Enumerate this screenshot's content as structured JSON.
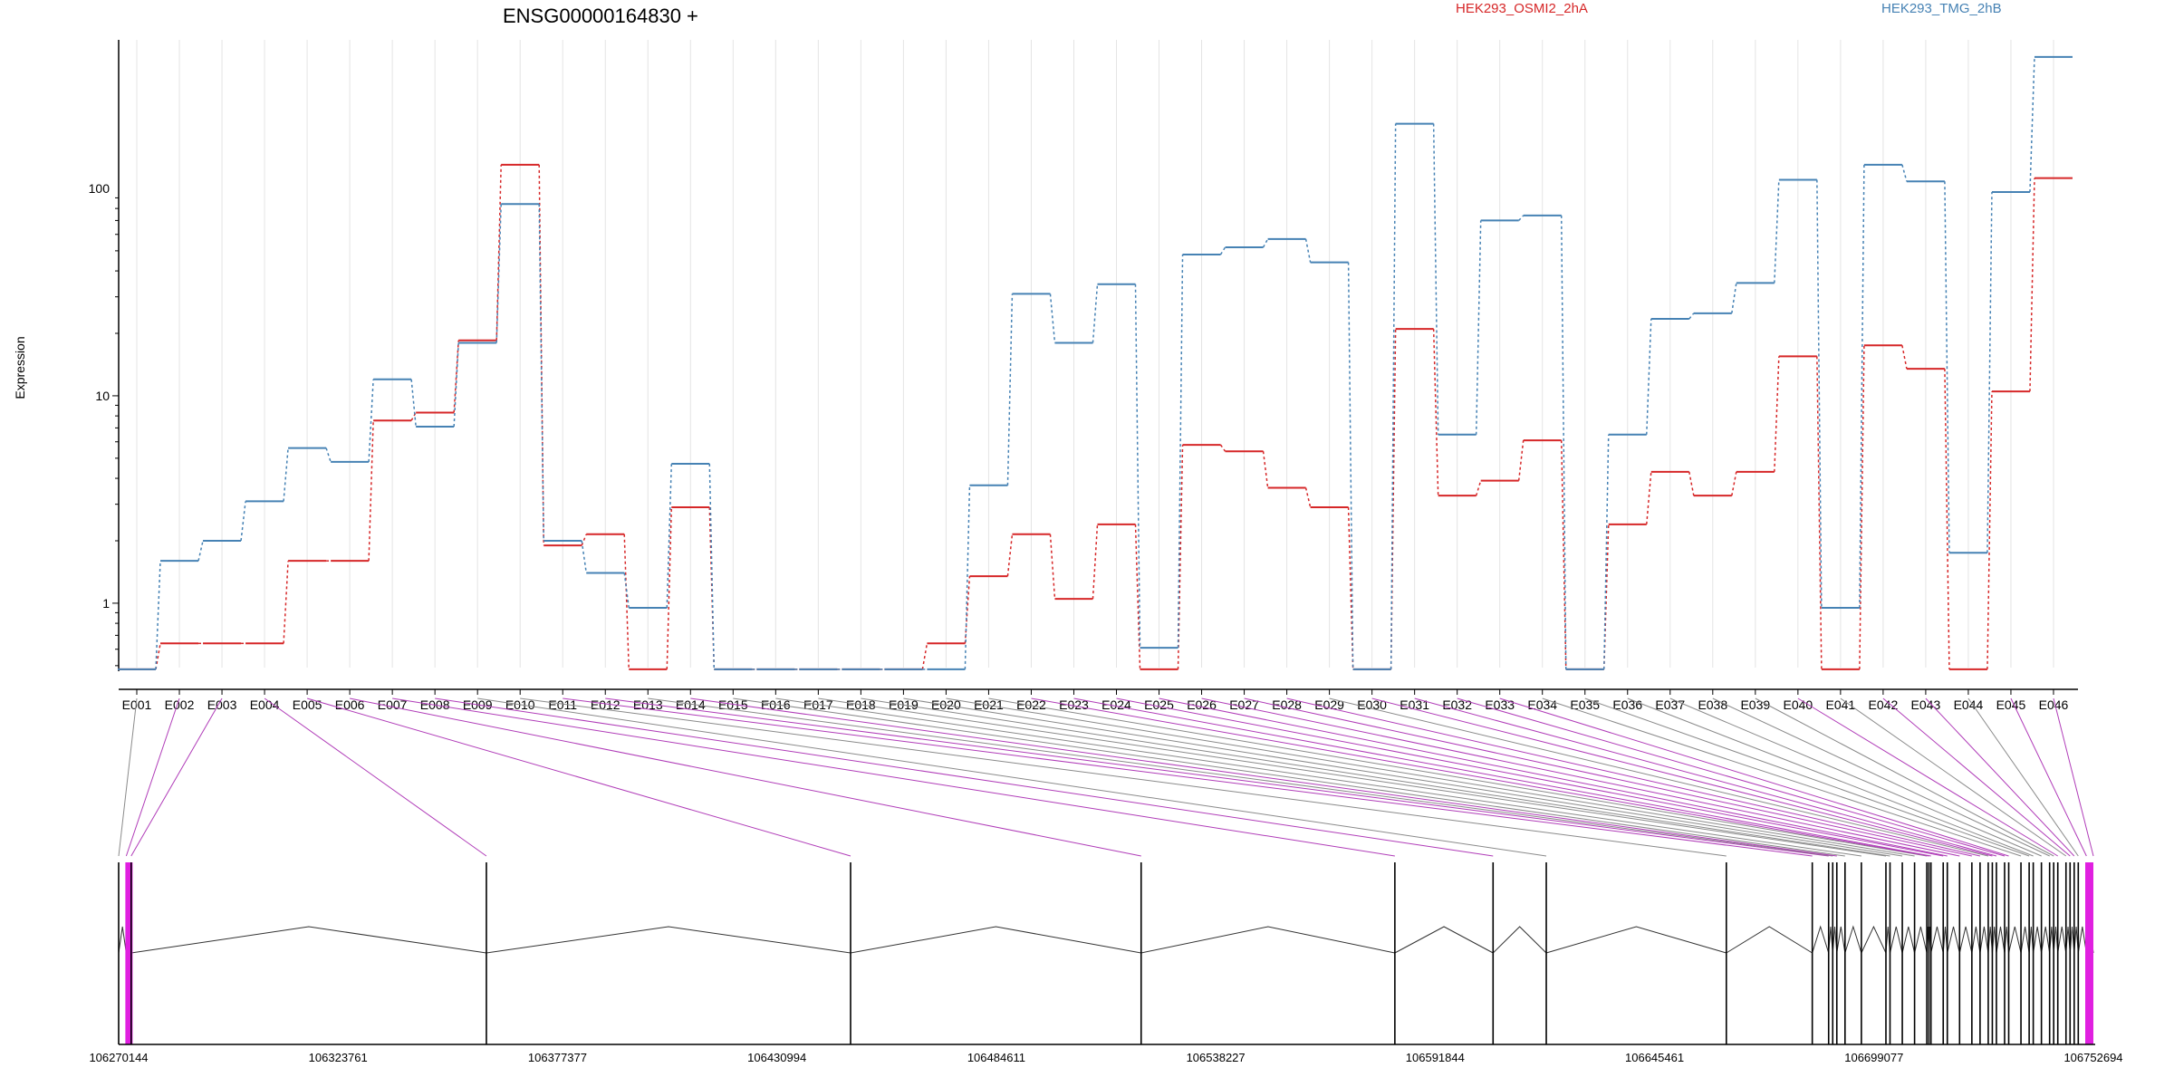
{
  "chart_data": {
    "type": "line",
    "title": "ENSG00000164830 +",
    "ylabel": "Expression",
    "xlabel": "",
    "y_scale": "log",
    "ylim": [
      0.47,
      520
    ],
    "y_ticks": [
      1,
      10,
      100
    ],
    "grid": "vertical, light",
    "legend": "top-right",
    "categories": [
      "E001",
      "E002",
      "E003",
      "E004",
      "E005",
      "E006",
      "E007",
      "E008",
      "E009",
      "E010",
      "E011",
      "E012",
      "E013",
      "E014",
      "E015",
      "E016",
      "E017",
      "E018",
      "E019",
      "E020",
      "E021",
      "E022",
      "E023",
      "E024",
      "E025",
      "E026",
      "E027",
      "E028",
      "E029",
      "E030",
      "E031",
      "E032",
      "E033",
      "E034",
      "E035",
      "E036",
      "E037",
      "E038",
      "E039",
      "E040",
      "E041",
      "E042",
      "E043",
      "E044",
      "E045",
      "E046"
    ],
    "series": [
      {
        "name": "HEK293_OSMI2_2hA",
        "color": "#d62728",
        "values": [
          0.48,
          0.64,
          0.64,
          0.64,
          1.6,
          1.6,
          7.6,
          8.3,
          18.5,
          130,
          1.9,
          2.15,
          0.48,
          2.9,
          0.48,
          0.48,
          0.48,
          0.48,
          0.48,
          0.64,
          1.35,
          2.15,
          1.05,
          2.4,
          0.48,
          5.8,
          5.4,
          3.6,
          2.9,
          0.48,
          21,
          3.3,
          3.9,
          6.1,
          0.48,
          2.4,
          4.3,
          3.3,
          4.3,
          15.5,
          0.48,
          17.5,
          13.5,
          0.48,
          10.5,
          112
        ]
      },
      {
        "name": "HEK293_TMG_2hB",
        "color": "#4682b4",
        "values": [
          0.48,
          1.6,
          2.0,
          3.1,
          5.6,
          4.8,
          12,
          7.1,
          18,
          84,
          2.0,
          1.4,
          0.95,
          4.7,
          0.48,
          0.48,
          0.48,
          0.48,
          0.48,
          0.48,
          3.7,
          31,
          18,
          34.5,
          0.61,
          48,
          52,
          57,
          44,
          0.48,
          205,
          6.5,
          70,
          74,
          0.48,
          6.5,
          23.5,
          25,
          35,
          110,
          0.95,
          130,
          108,
          1.75,
          96,
          430
        ]
      }
    ],
    "genomic_axis": {
      "tick_labels": [
        "106270144",
        "106323761",
        "106377377",
        "106430994",
        "106484611",
        "106538227",
        "106591844",
        "106645461",
        "106699077",
        "106752694"
      ]
    },
    "exon_positions": [
      106270144,
      106272000,
      106273200,
      106360000,
      106449000,
      106520000,
      106582000,
      106606000,
      106619000,
      106663000,
      106684000,
      106688000,
      106689000,
      106690000,
      106692000,
      106696000,
      106702000,
      106703000,
      106706000,
      106709000,
      106712000,
      106712500,
      106713000,
      106716000,
      106717000,
      106720000,
      106723000,
      106725000,
      106727000,
      106728000,
      106729000,
      106731000,
      106732000,
      106735000,
      106737000,
      106738000,
      106740000,
      106742000,
      106743000,
      106744000,
      106746000,
      106747000,
      106748000,
      106749000,
      106751000,
      106752694
    ],
    "highlighted_exons": [
      "E002",
      "E003",
      "E004",
      "E005",
      "E006",
      "E007",
      "E008",
      "E011",
      "E012",
      "E014",
      "E022",
      "E023",
      "E024",
      "E025",
      "E026",
      "E027",
      "E028",
      "E030",
      "E031",
      "E032",
      "E033",
      "E040",
      "E042",
      "E043",
      "E045",
      "E046"
    ],
    "highlight_color": "#b03cb8",
    "exon_fill_color": "#e020e0"
  }
}
